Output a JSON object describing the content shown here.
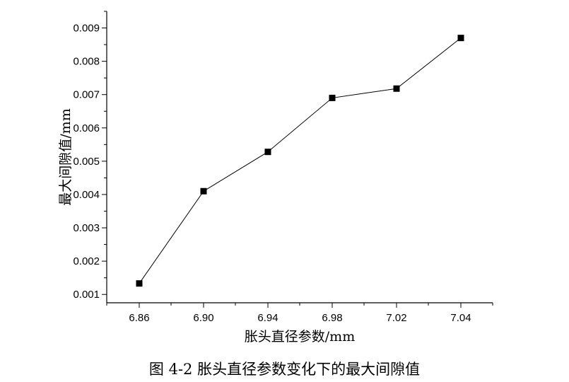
{
  "chart_data": {
    "type": "line",
    "x": [
      6.86,
      6.9,
      6.94,
      6.98,
      7.02,
      7.04
    ],
    "series": [
      {
        "values": [
          0.00133,
          0.0041,
          0.00528,
          0.0069,
          0.00718,
          0.0087
        ]
      }
    ],
    "xlabel": "胀头直径参数/mm",
    "ylabel": "最大间隙值/mm",
    "xticks": [
      "6.86",
      "6.90",
      "6.94",
      "6.98",
      "7.02",
      "7.04"
    ],
    "yticks": [
      "0.001",
      "0.002",
      "0.003",
      "0.004",
      "0.005",
      "0.006",
      "0.007",
      "0.008",
      "0.009"
    ],
    "ylim": [
      0.00075,
      0.0095
    ],
    "grid": false,
    "marker": "square",
    "color": "#000000"
  },
  "caption": "图 4-2  胀头直径参数变化下的最大间隙值"
}
